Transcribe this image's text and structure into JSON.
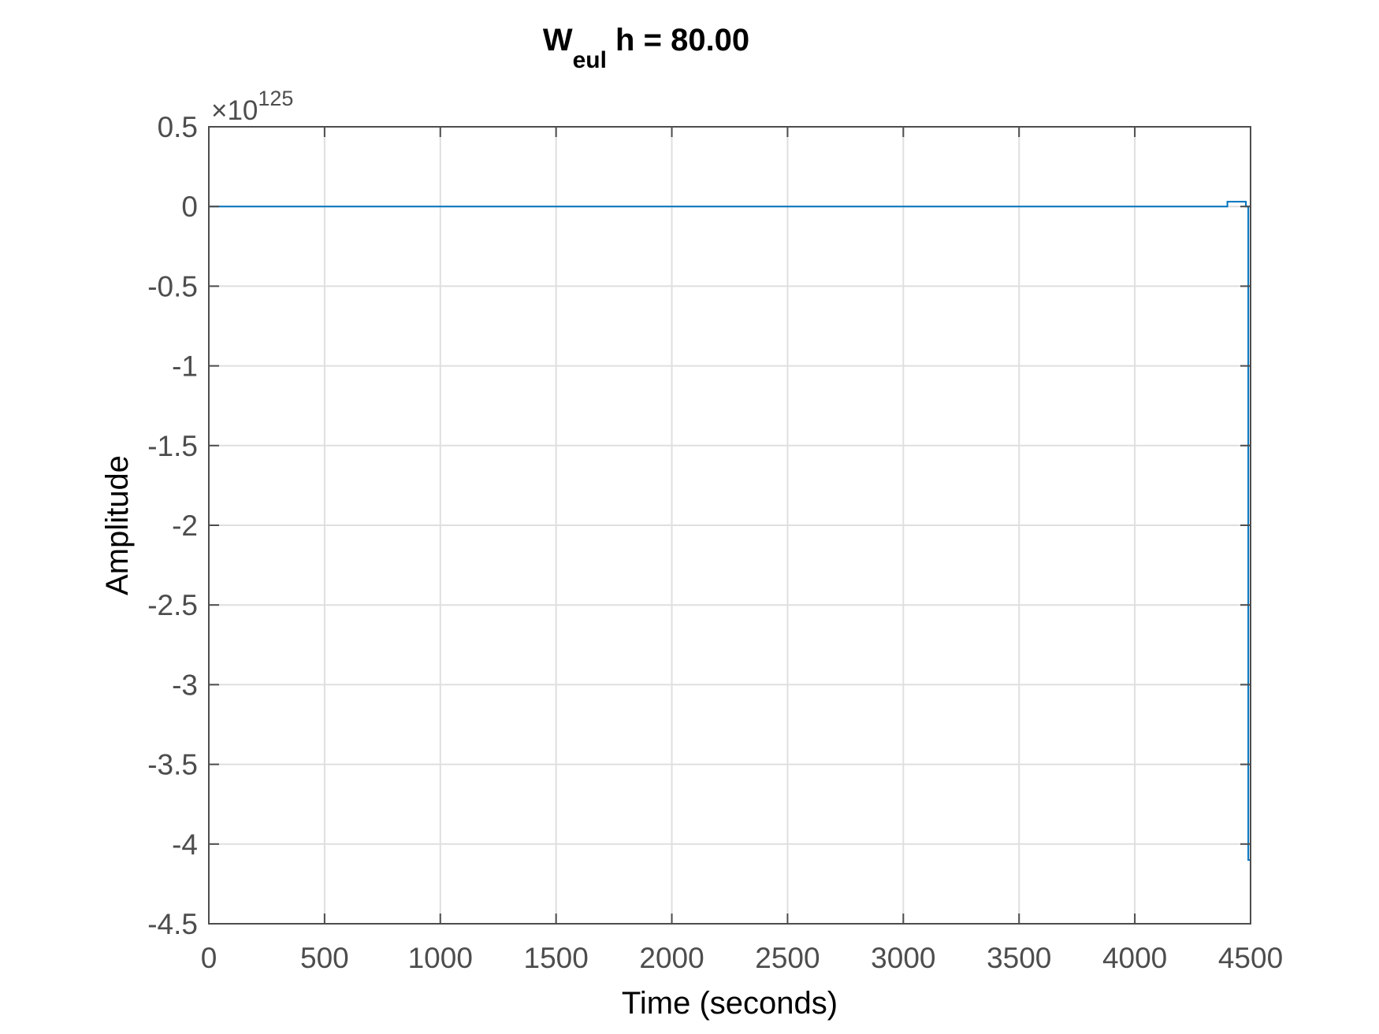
{
  "chart_data": {
    "type": "line",
    "title": {
      "main": "W",
      "subscript": "eul",
      "suffix": " h = 80.00"
    },
    "xlabel": "Time (seconds)",
    "ylabel": "Amplitude",
    "y_exponent": {
      "prefix": "×10",
      "power": "125"
    },
    "xlim": [
      0,
      4500
    ],
    "ylim": [
      -4.5,
      0.5
    ],
    "x_ticks": [
      0,
      500,
      1000,
      1500,
      2000,
      2500,
      3000,
      3500,
      4000,
      4500
    ],
    "y_ticks": [
      0.5,
      0,
      -0.5,
      -1,
      -1.5,
      -2,
      -2.5,
      -3,
      -3.5,
      -4,
      -4.5
    ],
    "y_tick_labels": [
      "0.5",
      "0",
      "-0.5",
      "-1",
      "-1.5",
      "-2",
      "-2.5",
      "-3",
      "-3.5",
      "-4",
      "-4.5"
    ],
    "grid": true,
    "series": [
      {
        "color": "#0072bd",
        "x": [
          0,
          4400,
          4400,
          4480,
          4480,
          4490,
          4490,
          4500
        ],
        "y": [
          0,
          0,
          0.03,
          0.03,
          0,
          0,
          -4.1,
          -4.1
        ]
      }
    ]
  }
}
